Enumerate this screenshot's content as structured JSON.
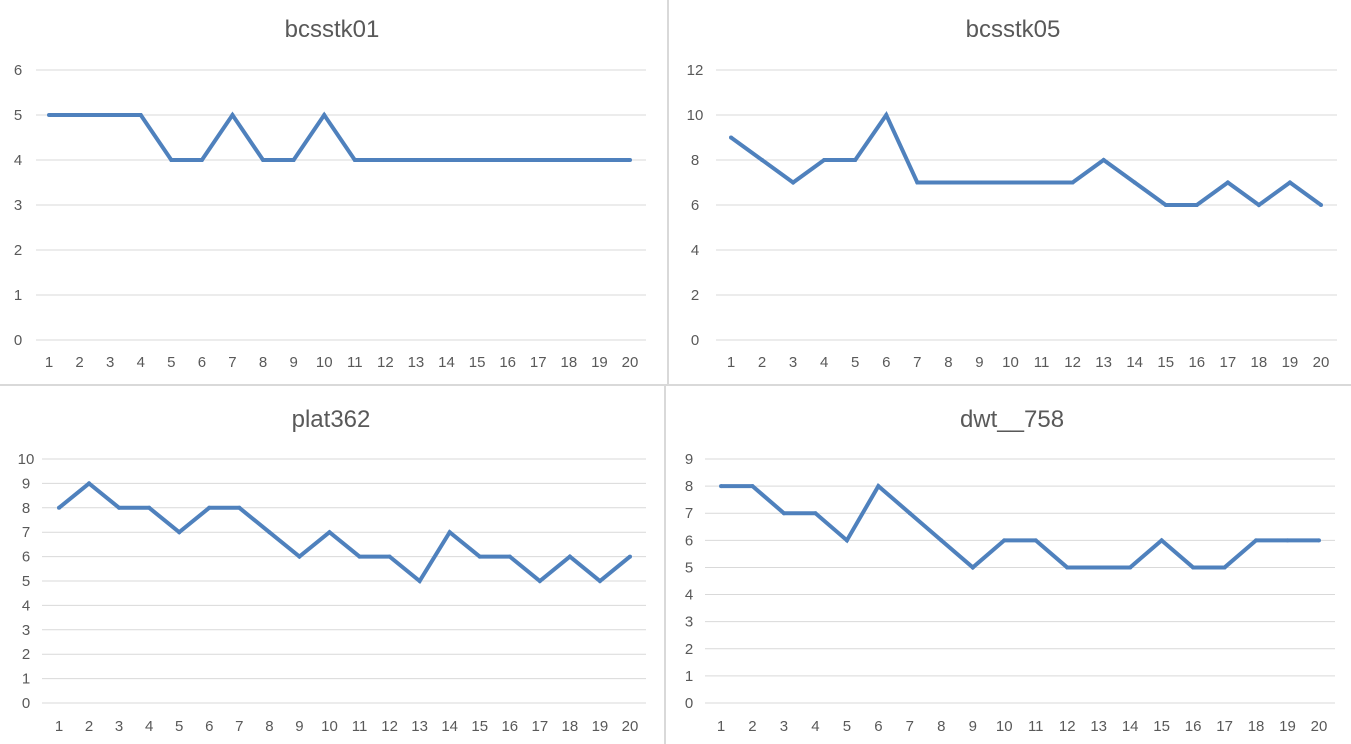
{
  "chart_data": [
    {
      "type": "line",
      "title": "bcsstk01",
      "categories": [
        "1",
        "2",
        "3",
        "4",
        "5",
        "6",
        "7",
        "8",
        "9",
        "10",
        "11",
        "12",
        "13",
        "14",
        "15",
        "16",
        "17",
        "18",
        "19",
        "20"
      ],
      "series": [
        {
          "values": [
            5,
            5,
            5,
            5,
            4,
            4,
            5,
            4,
            4,
            5,
            4,
            4,
            4,
            4,
            4,
            4,
            4,
            4,
            4,
            4
          ]
        }
      ],
      "ylim": [
        0,
        6
      ],
      "yticks": [
        0,
        1,
        2,
        3,
        4,
        5,
        6
      ],
      "grid": true,
      "color": "#4f81bd"
    },
    {
      "type": "line",
      "title": "bcsstk05",
      "categories": [
        "1",
        "2",
        "3",
        "4",
        "5",
        "6",
        "7",
        "8",
        "9",
        "10",
        "11",
        "12",
        "13",
        "14",
        "15",
        "16",
        "17",
        "18",
        "19",
        "20"
      ],
      "series": [
        {
          "values": [
            9,
            8,
            7,
            8,
            8,
            10,
            7,
            7,
            7,
            7,
            7,
            7,
            8,
            7,
            6,
            6,
            7,
            6,
            7,
            6
          ]
        }
      ],
      "ylim": [
        0,
        12
      ],
      "yticks": [
        0,
        2,
        4,
        6,
        8,
        10,
        12
      ],
      "grid": true,
      "color": "#4f81bd"
    },
    {
      "type": "line",
      "title": "plat362",
      "categories": [
        "1",
        "2",
        "3",
        "4",
        "5",
        "6",
        "7",
        "8",
        "9",
        "10",
        "11",
        "12",
        "13",
        "14",
        "15",
        "16",
        "17",
        "18",
        "19",
        "20"
      ],
      "series": [
        {
          "values": [
            8,
            9,
            8,
            8,
            7,
            8,
            8,
            7,
            6,
            7,
            6,
            6,
            5,
            7,
            6,
            6,
            5,
            6,
            5,
            6
          ]
        }
      ],
      "ylim": [
        0,
        10
      ],
      "yticks": [
        0,
        1,
        2,
        3,
        4,
        5,
        6,
        7,
        8,
        9,
        10
      ],
      "grid": true,
      "color": "#4f81bd"
    },
    {
      "type": "line",
      "title": "dwt__758",
      "categories": [
        "1",
        "2",
        "3",
        "4",
        "5",
        "6",
        "7",
        "8",
        "9",
        "10",
        "11",
        "12",
        "13",
        "14",
        "15",
        "16",
        "17",
        "18",
        "19",
        "20"
      ],
      "series": [
        {
          "values": [
            8,
            8,
            7,
            7,
            6,
            8,
            7,
            6,
            5,
            6,
            6,
            5,
            5,
            5,
            6,
            5,
            5,
            6,
            6,
            6
          ]
        }
      ],
      "ylim": [
        0,
        9
      ],
      "yticks": [
        0,
        1,
        2,
        3,
        4,
        5,
        6,
        7,
        8,
        9
      ],
      "grid": true,
      "color": "#4f81bd"
    }
  ]
}
